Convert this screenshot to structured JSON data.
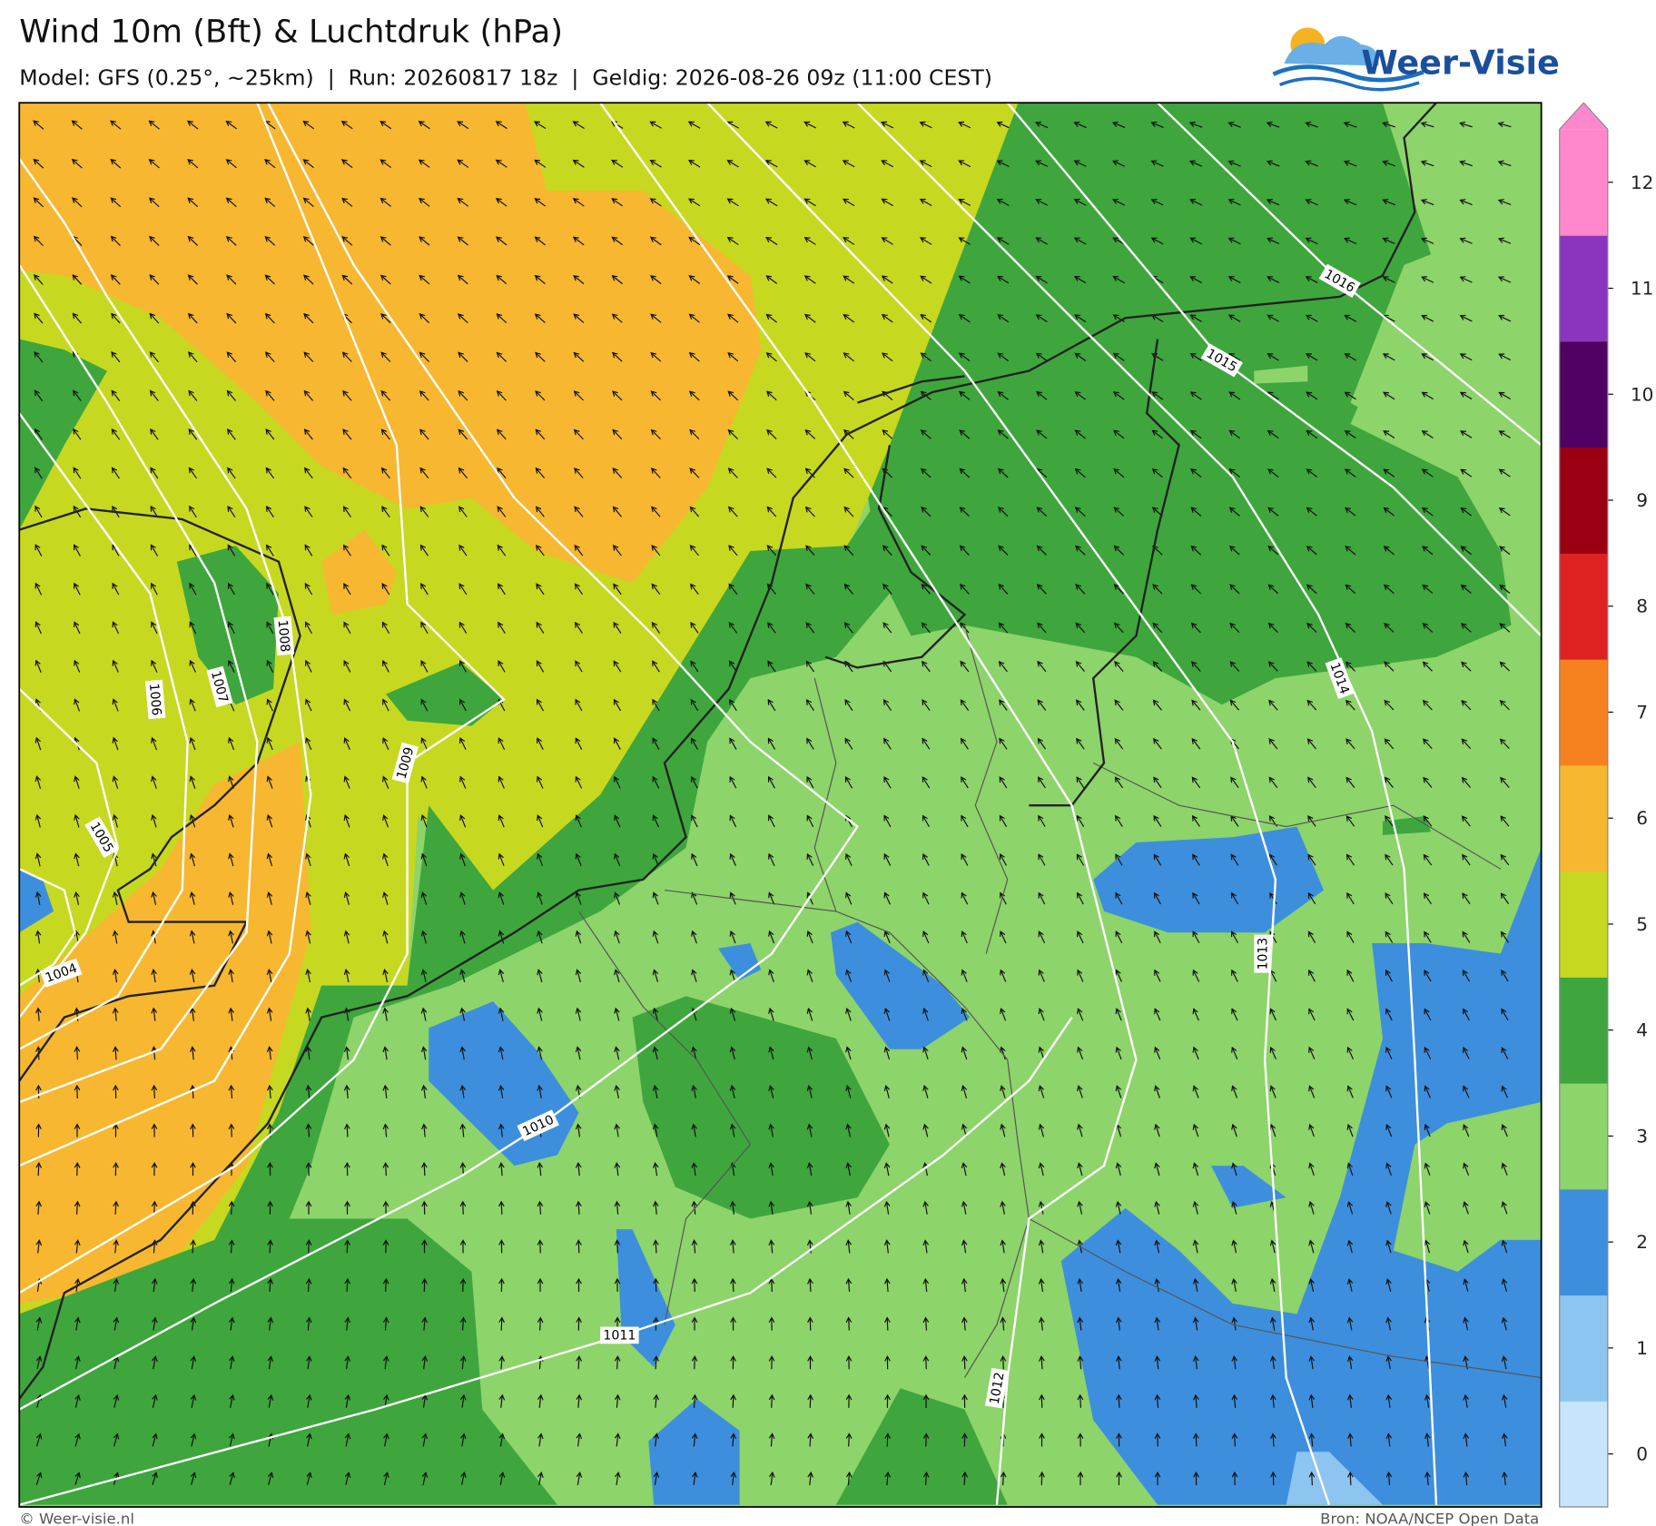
{
  "header": {
    "title": "Wind 10m (Bft) & Luchtdruk (hPa)",
    "subtitle": "Model: GFS (0.25°, ~25km)  |  Run: 20260817 18z  |  Geldig: 2026-08-26 09z (11:00 CEST)"
  },
  "logo": "Weer-Visie",
  "colorbar": {
    "levels": [
      {
        "label": 0,
        "color": "#c6e5fb"
      },
      {
        "label": 1,
        "color": "#8ec4f0"
      },
      {
        "label": 2,
        "color": "#3d8fdd"
      },
      {
        "label": 3,
        "color": "#8dd46a"
      },
      {
        "label": 4,
        "color": "#3ea63d"
      },
      {
        "label": 5,
        "color": "#c7d821"
      },
      {
        "label": 6,
        "color": "#f7b731"
      },
      {
        "label": 7,
        "color": "#f6821f"
      },
      {
        "label": 8,
        "color": "#de2222"
      },
      {
        "label": 9,
        "color": "#9b0012"
      },
      {
        "label": 10,
        "color": "#4f0062"
      },
      {
        "label": 11,
        "color": "#8b35be"
      },
      {
        "label": 12,
        "color": "#ff88cc"
      }
    ]
  },
  "isobars": [
    1004,
    1005,
    1006,
    1007,
    1008,
    1009,
    1010,
    1011,
    1012,
    1013,
    1014,
    1015,
    1016
  ],
  "footer": {
    "left": "© Weer-visie.nl",
    "right": "Bron: NOAA/NCEP Open Data"
  }
}
